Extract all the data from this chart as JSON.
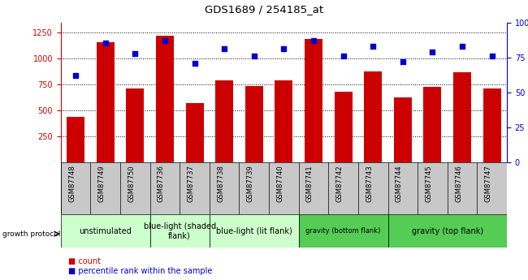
{
  "title": "GDS1689 / 254185_at",
  "samples": [
    "GSM87748",
    "GSM87749",
    "GSM87750",
    "GSM87736",
    "GSM87737",
    "GSM87738",
    "GSM87739",
    "GSM87740",
    "GSM87741",
    "GSM87742",
    "GSM87743",
    "GSM87744",
    "GSM87745",
    "GSM87746",
    "GSM87747"
  ],
  "counts": [
    440,
    1160,
    710,
    1220,
    570,
    790,
    740,
    790,
    1190,
    680,
    880,
    630,
    730,
    870,
    710
  ],
  "percentiles": [
    62,
    85,
    78,
    87,
    71,
    81,
    76,
    81,
    87,
    76,
    83,
    72,
    79,
    83,
    76
  ],
  "groups": [
    {
      "label": "unstimulated",
      "start": 0,
      "end": 3,
      "color": "#ccffcc",
      "fontsize": 7
    },
    {
      "label": "blue-light (shaded\nflank)",
      "start": 3,
      "end": 5,
      "color": "#ccffcc",
      "fontsize": 7
    },
    {
      "label": "blue-light (lit flank)",
      "start": 5,
      "end": 8,
      "color": "#ccffcc",
      "fontsize": 7
    },
    {
      "label": "gravity (bottom flank)",
      "start": 8,
      "end": 11,
      "color": "#55cc55",
      "fontsize": 6
    },
    {
      "label": "gravity (top flank)",
      "start": 11,
      "end": 15,
      "color": "#55cc55",
      "fontsize": 7
    }
  ],
  "bar_color": "#cc0000",
  "dot_color": "#0000cc",
  "left_ylim": [
    0,
    1350
  ],
  "right_ylim": [
    0,
    100
  ],
  "left_yticks": [
    250,
    500,
    750,
    1000,
    1250
  ],
  "right_yticks": [
    0,
    25,
    50,
    75,
    100
  ],
  "left_ycolor": "#cc0000",
  "right_ycolor": "#0000cc",
  "sample_bg_color": "#c8c8c8",
  "growth_protocol_label": "growth protocol",
  "legend_count_label": "count",
  "legend_pct_label": "percentile rank within the sample",
  "fig_width": 6.5,
  "fig_height": 3.45,
  "dpi": 100
}
